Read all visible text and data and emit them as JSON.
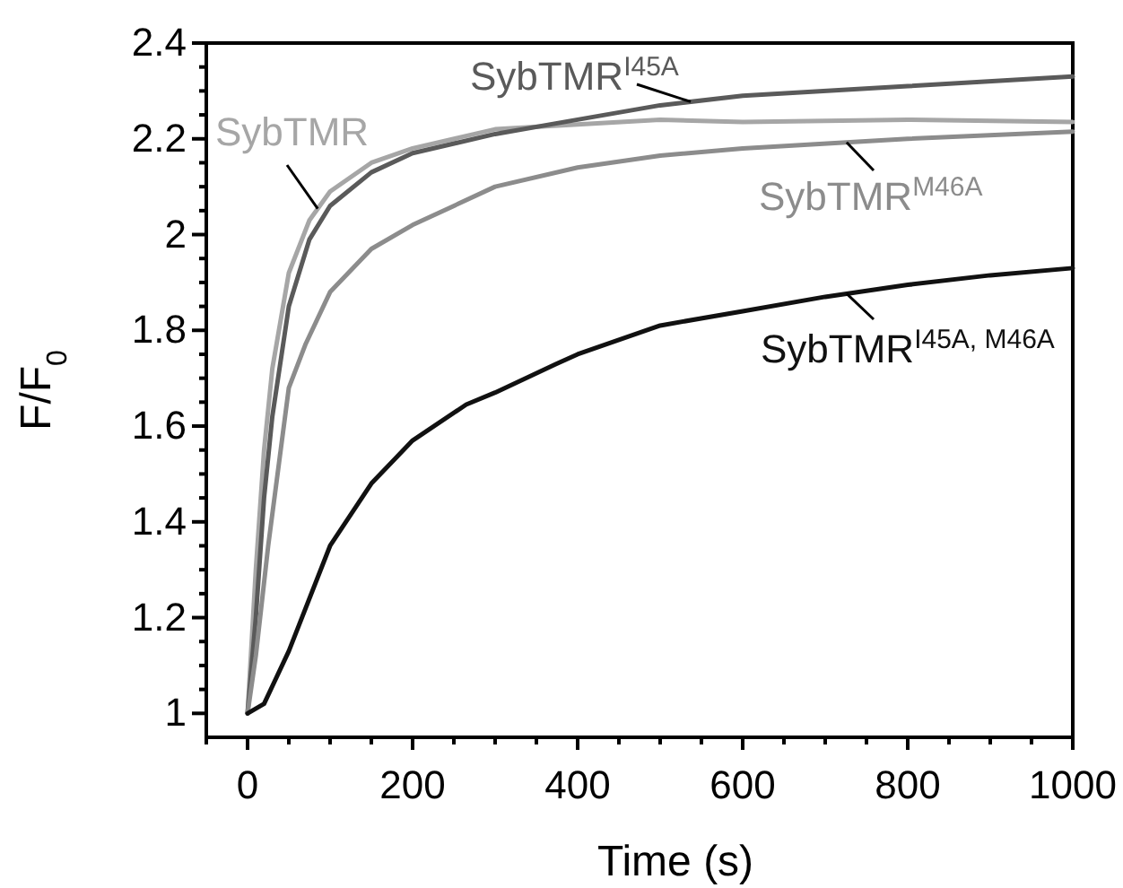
{
  "chart_data": {
    "type": "line",
    "xlabel": "Time (s)",
    "ylabel": "F/F$_{0}$",
    "xlim": [
      -50,
      1000
    ],
    "ylim": [
      0.95,
      2.4
    ],
    "xticks": [
      0,
      200,
      400,
      600,
      800,
      1000
    ],
    "yticks": [
      1,
      {
        "value": 1.2,
        "label": "1.2"
      },
      {
        "value": 1.4,
        "label": "1.4"
      },
      {
        "value": 1.6,
        "label": "1.6"
      },
      {
        "value": 1.8,
        "label": "1.8"
      },
      2,
      {
        "value": 2.2,
        "label": "2.2"
      },
      {
        "value": 2.4,
        "label": "2.4"
      }
    ],
    "grid": false,
    "legend": false,
    "marker": "none",
    "line_style": "solid",
    "series": [
      {
        "name": "SybTMR",
        "color": "#a6a6a6",
        "x": [
          0,
          10,
          20,
          30,
          50,
          75,
          100,
          150,
          200,
          300,
          400,
          500,
          600,
          800,
          1000
        ],
        "values": [
          1,
          1.3,
          1.55,
          1.72,
          1.92,
          2.03,
          2.09,
          2.15,
          2.18,
          2.22,
          2.23,
          2.24,
          2.235,
          2.24,
          2.235
        ]
      },
      {
        "name": "SybTMR$^{I45A}$",
        "color": "#5a5a5a",
        "x": [
          0,
          10,
          20,
          30,
          50,
          75,
          100,
          150,
          200,
          300,
          400,
          500,
          600,
          800,
          1000
        ],
        "values": [
          1,
          1.2,
          1.45,
          1.62,
          1.85,
          1.99,
          2.06,
          2.13,
          2.17,
          2.21,
          2.24,
          2.27,
          2.29,
          2.31,
          2.33
        ]
      },
      {
        "name": "SybTMR$^{M46A}$",
        "color": "#8c8c8c",
        "x": [
          0,
          10,
          25,
          50,
          70,
          100,
          150,
          200,
          300,
          400,
          500,
          600,
          800,
          1000
        ],
        "values": [
          1,
          1.12,
          1.35,
          1.68,
          1.77,
          1.88,
          1.97,
          2.02,
          2.1,
          2.14,
          2.165,
          2.18,
          2.2,
          2.215
        ]
      },
      {
        "name": "SybTMR$^{I45A, M46A}$",
        "color": "#111111",
        "x": [
          0,
          20,
          50,
          100,
          150,
          200,
          265,
          300,
          374,
          400,
          500,
          600,
          700,
          800,
          900,
          1000
        ],
        "values": [
          1,
          1.02,
          1.13,
          1.35,
          1.48,
          1.57,
          1.645,
          1.67,
          1.73,
          1.75,
          1.81,
          1.84,
          1.87,
          1.895,
          1.915,
          1.93
        ]
      }
    ]
  }
}
